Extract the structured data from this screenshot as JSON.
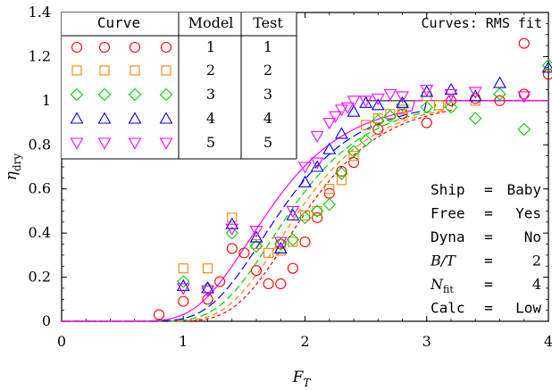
{
  "chart_data": {
    "type": "scatter",
    "x_label": "F",
    "x_label_sub": "T",
    "y_label": "η",
    "y_label_sub": "dry",
    "xlim": [
      0,
      4
    ],
    "ylim": [
      0,
      1.4
    ],
    "x_ticks": [
      0,
      1,
      2,
      3,
      4
    ],
    "x_tick_labels": [
      "0",
      "1",
      "2",
      "3",
      "4"
    ],
    "y_ticks": [
      0,
      0.2,
      0.4,
      0.6,
      0.8,
      1.0,
      1.2,
      1.4
    ],
    "y_tick_labels": [
      "0",
      "0.2",
      "0.4",
      "0.6",
      "0.8",
      "1",
      "1.2",
      "1.4"
    ],
    "grid": false,
    "annotation": "Curves: RMS fit",
    "legend_table": {
      "placement": "top-left",
      "headers": [
        "Curve",
        "Model",
        "Test"
      ],
      "rows": [
        {
          "model": "1",
          "test": "1"
        },
        {
          "model": "2",
          "test": "2"
        },
        {
          "model": "3",
          "test": "3"
        },
        {
          "model": "4",
          "test": "4"
        },
        {
          "model": "5",
          "test": "5"
        }
      ]
    },
    "info_table": [
      {
        "key": "Ship",
        "eq": "=",
        "value": "Baby",
        "italic": false
      },
      {
        "key": "Free",
        "eq": "=",
        "value": "Yes",
        "italic": false
      },
      {
        "key": "Dyna",
        "eq": "=",
        "value": "No",
        "italic": false
      },
      {
        "key": "B/T",
        "eq": "=",
        "value": "2",
        "italic": true
      },
      {
        "key": "N",
        "key_sub": "fit",
        "eq": "=",
        "value": "4",
        "italic": true
      },
      {
        "key": "Calc",
        "eq": "=",
        "value": "Low",
        "italic": false
      }
    ],
    "series": [
      {
        "marker": "circle",
        "color": "#ff0000",
        "fit": {
          "center": 2.2,
          "width": 0.74,
          "max": 1.0
        },
        "x": [
          0.8,
          1.0,
          1.2,
          1.3,
          1.4,
          1.5,
          1.6,
          1.7,
          1.8,
          1.8,
          1.9,
          2.0,
          2.1,
          2.2,
          2.3,
          2.4,
          2.6,
          2.8,
          3.0,
          3.2,
          3.4,
          3.6,
          3.8,
          3.8,
          4.0
        ],
        "y": [
          0.03,
          0.09,
          0.1,
          0.18,
          0.33,
          0.31,
          0.23,
          0.17,
          0.17,
          0.35,
          0.24,
          0.36,
          0.47,
          0.58,
          0.68,
          0.72,
          0.87,
          0.94,
          0.9,
          1.0,
          1.01,
          1.0,
          1.26,
          1.03,
          1.12
        ]
      },
      {
        "marker": "square",
        "color": "#ff8000",
        "fit": {
          "center": 2.14,
          "width": 0.74,
          "max": 1.0
        },
        "x": [
          1.0,
          1.2,
          1.4,
          1.6,
          1.7,
          1.8,
          1.9,
          2.0,
          2.1,
          2.2,
          2.3,
          2.4,
          2.5,
          2.6,
          2.7,
          2.8,
          3.0,
          3.1,
          3.4
        ],
        "y": [
          0.24,
          0.24,
          0.47,
          0.35,
          0.31,
          0.32,
          0.36,
          0.48,
          0.5,
          0.6,
          0.64,
          0.75,
          0.89,
          0.92,
          0.94,
          0.96,
          1.02,
          0.98,
          1.0
        ]
      },
      {
        "marker": "diamond",
        "color": "#00d000",
        "fit": {
          "center": 2.07,
          "width": 0.74,
          "max": 1.0
        },
        "x": [
          1.0,
          1.2,
          1.4,
          1.6,
          1.8,
          1.9,
          2.0,
          2.1,
          2.2,
          2.3,
          2.4,
          2.5,
          2.6,
          2.7,
          2.8,
          3.0,
          3.2,
          3.4,
          3.6,
          3.8,
          4.0
        ],
        "y": [
          0.18,
          0.15,
          0.4,
          0.34,
          0.35,
          0.37,
          0.47,
          0.5,
          0.53,
          0.67,
          0.77,
          0.82,
          0.91,
          0.93,
          0.98,
          0.97,
          0.97,
          0.92,
          1.03,
          0.87,
          1.16
        ]
      },
      {
        "marker": "triangle-up",
        "color": "#0000ff",
        "fit": {
          "center": 1.99,
          "width": 0.74,
          "max": 1.0
        },
        "x": [
          1.0,
          1.2,
          1.4,
          1.6,
          1.8,
          1.9,
          2.0,
          2.1,
          2.2,
          2.3,
          2.4,
          2.5,
          2.6,
          2.8,
          3.0,
          3.2,
          3.4,
          3.6,
          4.0
        ],
        "y": [
          0.16,
          0.15,
          0.44,
          0.38,
          0.33,
          0.48,
          0.63,
          0.7,
          0.78,
          0.85,
          0.95,
          0.99,
          0.98,
          0.99,
          1.04,
          1.05,
          1.02,
          1.08,
          1.15
        ]
      },
      {
        "marker": "triangle-down",
        "color": "#ff00ff",
        "fit": {
          "center": 1.89,
          "width": 0.74,
          "max": 1.0
        },
        "x": [
          1.0,
          1.2,
          1.4,
          1.6,
          1.8,
          1.9,
          2.0,
          2.1,
          2.1,
          2.2,
          2.25,
          2.3,
          2.35,
          2.4,
          2.5,
          2.6,
          2.7,
          2.8,
          3.0,
          3.2,
          3.4,
          3.8
        ],
        "y": [
          0.15,
          0.14,
          0.42,
          0.41,
          0.36,
          0.5,
          0.7,
          0.72,
          0.84,
          0.9,
          0.93,
          0.96,
          0.97,
          1.0,
          1.0,
          1.01,
          1.03,
          1.02,
          1.05,
          1.03,
          1.04,
          1.02
        ]
      }
    ]
  }
}
